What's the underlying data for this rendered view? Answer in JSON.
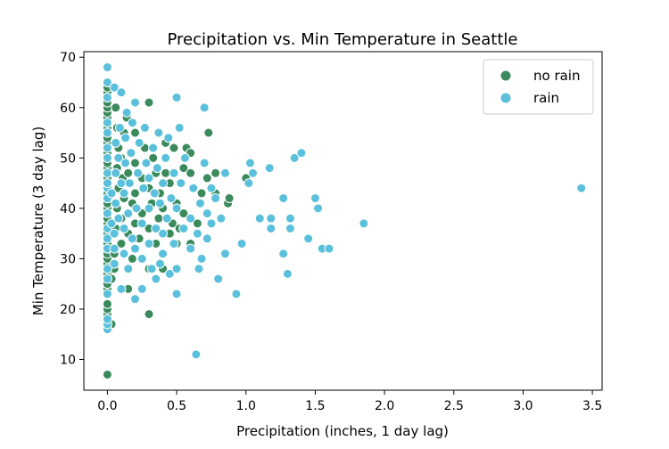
{
  "chart_data": {
    "type": "scatter",
    "title": "Precipitation vs. Min Temperature in Seattle",
    "xlabel": "Precipitation (inches, 1 day lag)",
    "ylabel": "Min Temperature (3 day lag)",
    "xlim": [
      -0.17,
      3.57
    ],
    "ylim": [
      3.9,
      71.1
    ],
    "xticks": [
      {
        "value": 0.0,
        "label": "0.0"
      },
      {
        "value": 0.5,
        "label": "0.5"
      },
      {
        "value": 1.0,
        "label": "1.0"
      },
      {
        "value": 1.5,
        "label": "1.5"
      },
      {
        "value": 2.0,
        "label": "2.0"
      },
      {
        "value": 2.5,
        "label": "2.5"
      },
      {
        "value": 3.0,
        "label": "3.0"
      },
      {
        "value": 3.5,
        "label": "3.5"
      }
    ],
    "yticks": [
      {
        "value": 10,
        "label": "10"
      },
      {
        "value": 20,
        "label": "20"
      },
      {
        "value": 30,
        "label": "30"
      },
      {
        "value": 40,
        "label": "40"
      },
      {
        "value": 50,
        "label": "50"
      },
      {
        "value": 60,
        "label": "60"
      },
      {
        "value": 70,
        "label": "70"
      }
    ],
    "grid": false,
    "legend": {
      "position": "top-right"
    },
    "series": [
      {
        "name": "no rain",
        "color": "#3a8a5c",
        "points": [
          [
            0,
            7
          ],
          [
            0,
            17
          ],
          [
            0,
            19
          ],
          [
            0,
            20
          ],
          [
            0,
            21
          ],
          [
            0,
            24
          ],
          [
            0,
            25
          ],
          [
            0,
            27
          ],
          [
            0,
            29
          ],
          [
            0,
            30
          ],
          [
            0,
            31
          ],
          [
            0,
            32
          ],
          [
            0,
            33
          ],
          [
            0,
            34
          ],
          [
            0,
            35
          ],
          [
            0,
            36
          ],
          [
            0,
            37
          ],
          [
            0,
            38
          ],
          [
            0,
            39
          ],
          [
            0,
            40
          ],
          [
            0,
            41
          ],
          [
            0,
            42
          ],
          [
            0,
            43
          ],
          [
            0,
            44
          ],
          [
            0,
            45
          ],
          [
            0,
            46
          ],
          [
            0,
            47
          ],
          [
            0,
            48
          ],
          [
            0,
            49
          ],
          [
            0,
            50
          ],
          [
            0,
            51
          ],
          [
            0,
            52
          ],
          [
            0,
            53
          ],
          [
            0,
            54
          ],
          [
            0,
            55
          ],
          [
            0,
            56
          ],
          [
            0,
            57
          ],
          [
            0,
            58
          ],
          [
            0,
            59
          ],
          [
            0,
            60
          ],
          [
            0,
            61
          ],
          [
            0,
            62
          ],
          [
            0,
            63
          ],
          [
            0,
            64
          ],
          [
            0.03,
            17
          ],
          [
            0.03,
            26
          ],
          [
            0.05,
            28
          ],
          [
            0.05,
            31
          ],
          [
            0.06,
            36
          ],
          [
            0.07,
            40
          ],
          [
            0.08,
            44
          ],
          [
            0.07,
            48
          ],
          [
            0.08,
            52
          ],
          [
            0.07,
            56
          ],
          [
            0.06,
            60
          ],
          [
            0.1,
            33
          ],
          [
            0.1,
            38
          ],
          [
            0.12,
            42
          ],
          [
            0.11,
            46
          ],
          [
            0.1,
            50
          ],
          [
            0.12,
            55
          ],
          [
            0.15,
            24
          ],
          [
            0.15,
            35
          ],
          [
            0.15,
            47
          ],
          [
            0.14,
            58
          ],
          [
            0.18,
            30
          ],
          [
            0.18,
            41
          ],
          [
            0.2,
            37
          ],
          [
            0.2,
            43
          ],
          [
            0.2,
            49
          ],
          [
            0.2,
            55
          ],
          [
            0.23,
            34
          ],
          [
            0.25,
            39
          ],
          [
            0.25,
            46
          ],
          [
            0.27,
            52
          ],
          [
            0.3,
            19
          ],
          [
            0.3,
            28
          ],
          [
            0.3,
            36
          ],
          [
            0.3,
            44
          ],
          [
            0.3,
            61
          ],
          [
            0.32,
            41
          ],
          [
            0.33,
            50
          ],
          [
            0.35,
            33
          ],
          [
            0.35,
            47
          ],
          [
            0.37,
            38
          ],
          [
            0.38,
            43
          ],
          [
            0.4,
            28
          ],
          [
            0.4,
            40
          ],
          [
            0.42,
            47
          ],
          [
            0.42,
            53
          ],
          [
            0.45,
            35
          ],
          [
            0.45,
            45
          ],
          [
            0.47,
            37
          ],
          [
            0.48,
            52
          ],
          [
            0.5,
            33
          ],
          [
            0.5,
            41
          ],
          [
            0.52,
            36
          ],
          [
            0.55,
            39
          ],
          [
            0.55,
            48
          ],
          [
            0.57,
            52
          ],
          [
            0.6,
            33
          ],
          [
            0.6,
            47
          ],
          [
            0.6,
            51
          ],
          [
            0.65,
            37
          ],
          [
            0.68,
            43
          ],
          [
            0.72,
            46
          ],
          [
            0.73,
            55
          ],
          [
            0.78,
            47
          ],
          [
            0.78,
            43
          ],
          [
            0.87,
            41
          ],
          [
            0.88,
            42
          ],
          [
            1.0,
            46
          ]
        ]
      },
      {
        "name": "rain",
        "color": "#5bc0db",
        "points": [
          [
            0,
            16
          ],
          [
            0,
            17
          ],
          [
            0,
            18
          ],
          [
            0,
            23
          ],
          [
            0,
            26
          ],
          [
            0,
            28
          ],
          [
            0,
            32
          ],
          [
            0,
            34
          ],
          [
            0,
            36
          ],
          [
            0,
            39
          ],
          [
            0,
            42
          ],
          [
            0,
            44
          ],
          [
            0,
            45
          ],
          [
            0,
            47
          ],
          [
            0,
            50
          ],
          [
            0,
            52
          ],
          [
            0,
            55
          ],
          [
            0,
            57
          ],
          [
            0,
            62
          ],
          [
            0,
            65
          ],
          [
            0,
            68
          ],
          [
            0.03,
            37
          ],
          [
            0.03,
            43
          ],
          [
            0.05,
            64
          ],
          [
            0.05,
            29
          ],
          [
            0.05,
            32
          ],
          [
            0.05,
            35
          ],
          [
            0.06,
            41
          ],
          [
            0.06,
            47
          ],
          [
            0.06,
            53
          ],
          [
            0.08,
            38
          ],
          [
            0.08,
            50
          ],
          [
            0.09,
            56
          ],
          [
            0.1,
            63
          ],
          [
            0.1,
            24
          ],
          [
            0.1,
            45
          ],
          [
            0.12,
            31
          ],
          [
            0.12,
            36
          ],
          [
            0.12,
            43
          ],
          [
            0.13,
            49
          ],
          [
            0.13,
            54
          ],
          [
            0.14,
            59
          ],
          [
            0.15,
            28
          ],
          [
            0.15,
            39
          ],
          [
            0.16,
            45
          ],
          [
            0.17,
            51
          ],
          [
            0.18,
            34
          ],
          [
            0.18,
            57
          ],
          [
            0.2,
            61
          ],
          [
            0.2,
            22
          ],
          [
            0.2,
            32
          ],
          [
            0.21,
            40
          ],
          [
            0.22,
            47
          ],
          [
            0.23,
            53
          ],
          [
            0.25,
            24
          ],
          [
            0.25,
            30
          ],
          [
            0.25,
            37
          ],
          [
            0.26,
            44
          ],
          [
            0.27,
            56
          ],
          [
            0.28,
            49
          ],
          [
            0.3,
            33
          ],
          [
            0.3,
            40
          ],
          [
            0.3,
            46
          ],
          [
            0.32,
            28
          ],
          [
            0.33,
            52
          ],
          [
            0.34,
            43
          ],
          [
            0.35,
            26
          ],
          [
            0.35,
            36
          ],
          [
            0.36,
            48
          ],
          [
            0.37,
            55
          ],
          [
            0.38,
            29
          ],
          [
            0.38,
            41
          ],
          [
            0.4,
            31
          ],
          [
            0.4,
            35
          ],
          [
            0.4,
            45
          ],
          [
            0.42,
            50
          ],
          [
            0.43,
            38
          ],
          [
            0.44,
            54
          ],
          [
            0.45,
            27
          ],
          [
            0.46,
            42
          ],
          [
            0.48,
            33
          ],
          [
            0.48,
            47
          ],
          [
            0.5,
            23
          ],
          [
            0.5,
            28
          ],
          [
            0.5,
            40
          ],
          [
            0.5,
            62
          ],
          [
            0.52,
            56
          ],
          [
            0.53,
            45
          ],
          [
            0.55,
            36
          ],
          [
            0.56,
            50
          ],
          [
            0.6,
            32
          ],
          [
            0.6,
            38
          ],
          [
            0.62,
            44
          ],
          [
            0.64,
            11
          ],
          [
            0.65,
            35
          ],
          [
            0.66,
            28
          ],
          [
            0.67,
            41
          ],
          [
            0.68,
            30
          ],
          [
            0.7,
            60
          ],
          [
            0.7,
            49
          ],
          [
            0.72,
            34
          ],
          [
            0.72,
            39
          ],
          [
            0.75,
            44
          ],
          [
            0.75,
            37
          ],
          [
            0.78,
            42
          ],
          [
            0.8,
            26
          ],
          [
            0.82,
            38
          ],
          [
            0.85,
            31
          ],
          [
            0.85,
            47
          ],
          [
            0.93,
            23
          ],
          [
            0.97,
            33
          ],
          [
            1.02,
            45
          ],
          [
            1.03,
            49
          ],
          [
            1.05,
            47
          ],
          [
            1.1,
            38
          ],
          [
            1.17,
            48
          ],
          [
            1.18,
            36
          ],
          [
            1.18,
            38
          ],
          [
            1.27,
            31
          ],
          [
            1.27,
            42
          ],
          [
            1.3,
            27
          ],
          [
            1.32,
            36
          ],
          [
            1.32,
            38
          ],
          [
            1.35,
            50
          ],
          [
            1.4,
            51
          ],
          [
            1.45,
            34
          ],
          [
            1.5,
            42
          ],
          [
            1.52,
            40
          ],
          [
            1.55,
            32
          ],
          [
            1.6,
            32
          ],
          [
            1.85,
            37
          ],
          [
            3.42,
            44
          ]
        ]
      }
    ]
  }
}
